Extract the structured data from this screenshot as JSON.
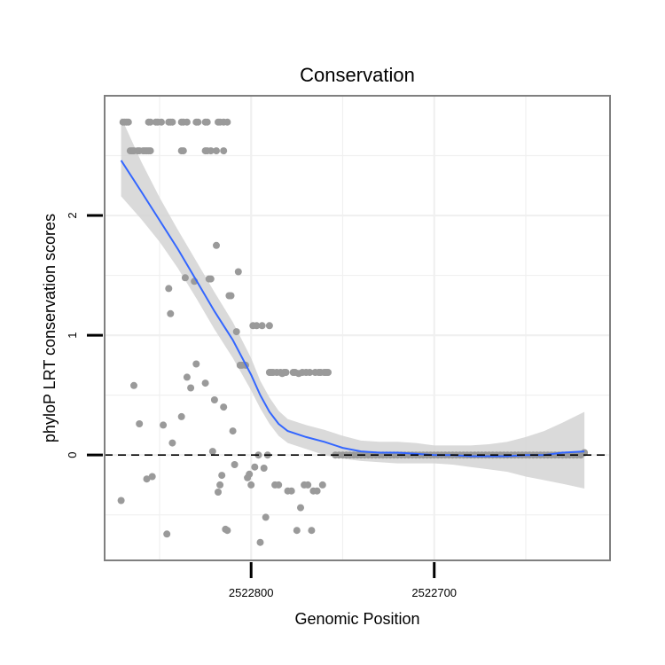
{
  "chart_data": {
    "type": "scatter",
    "title": "Conservation",
    "xlabel": "Genomic Position",
    "ylabel": "phyloP LRT conservation scores",
    "x_reversed": true,
    "xlim": [
      2522880,
      2522604
    ],
    "ylim": [
      -0.88,
      3.0
    ],
    "x_ticks": [
      2522800,
      2522700
    ],
    "x_tick_labels": [
      "2522800",
      "2522700"
    ],
    "y_ticks": [
      0,
      1,
      2
    ],
    "y_tick_labels": [
      "0",
      "1",
      "2"
    ],
    "grid": true,
    "reference_line": {
      "y": 0,
      "style": "dashed"
    },
    "colors": {
      "points": "#9a9a9a",
      "smooth_line": "#3366ff",
      "confidence_band": "#d3d3d3",
      "panel_border": "#7f7f7f",
      "grid": "#f0f0f0"
    },
    "series": [
      {
        "name": "scores",
        "points": [
          [
            2522870,
            2.78
          ],
          [
            2522869,
            2.78
          ],
          [
            2522868,
            2.78
          ],
          [
            2522867,
            2.78
          ],
          [
            2522856,
            2.78
          ],
          [
            2522855,
            2.78
          ],
          [
            2522852,
            2.78
          ],
          [
            2522851,
            2.78
          ],
          [
            2522849,
            2.78
          ],
          [
            2522845,
            2.78
          ],
          [
            2522844,
            2.78
          ],
          [
            2522843,
            2.78
          ],
          [
            2522838,
            2.78
          ],
          [
            2522837,
            2.78
          ],
          [
            2522835,
            2.78
          ],
          [
            2522830,
            2.78
          ],
          [
            2522829,
            2.78
          ],
          [
            2522825,
            2.78
          ],
          [
            2522824,
            2.78
          ],
          [
            2522818,
            2.78
          ],
          [
            2522817,
            2.78
          ],
          [
            2522815,
            2.78
          ],
          [
            2522813,
            2.78
          ],
          [
            2522866,
            2.54
          ],
          [
            2522865,
            2.54
          ],
          [
            2522864,
            2.54
          ],
          [
            2522862,
            2.54
          ],
          [
            2522861,
            2.54
          ],
          [
            2522859,
            2.54
          ],
          [
            2522858,
            2.54
          ],
          [
            2522857,
            2.54
          ],
          [
            2522856,
            2.54
          ],
          [
            2522855,
            2.54
          ],
          [
            2522838,
            2.54
          ],
          [
            2522837,
            2.54
          ],
          [
            2522825,
            2.54
          ],
          [
            2522824,
            2.54
          ],
          [
            2522822,
            2.54
          ],
          [
            2522819,
            2.54
          ],
          [
            2522815,
            2.54
          ],
          [
            2522871,
            -0.38
          ],
          [
            2522864,
            0.58
          ],
          [
            2522861,
            0.26
          ],
          [
            2522857,
            -0.2
          ],
          [
            2522854,
            -0.18
          ],
          [
            2522848,
            0.25
          ],
          [
            2522846,
            -0.66
          ],
          [
            2522845,
            1.39
          ],
          [
            2522844,
            1.18
          ],
          [
            2522843,
            0.1
          ],
          [
            2522838,
            0.32
          ],
          [
            2522836,
            1.48
          ],
          [
            2522835,
            0.65
          ],
          [
            2522833,
            0.56
          ],
          [
            2522831,
            1.45
          ],
          [
            2522830,
            0.76
          ],
          [
            2522825,
            0.6
          ],
          [
            2522823,
            1.47
          ],
          [
            2522822,
            1.47
          ],
          [
            2522821,
            0.03
          ],
          [
            2522820,
            0.46
          ],
          [
            2522819,
            1.75
          ],
          [
            2522818,
            -0.31
          ],
          [
            2522817,
            -0.25
          ],
          [
            2522816,
            -0.17
          ],
          [
            2522815,
            0.4
          ],
          [
            2522814,
            -0.62
          ],
          [
            2522813,
            -0.63
          ],
          [
            2522812,
            1.33
          ],
          [
            2522811,
            1.33
          ],
          [
            2522810,
            0.2
          ],
          [
            2522809,
            -0.08
          ],
          [
            2522808,
            1.03
          ],
          [
            2522807,
            1.53
          ],
          [
            2522806,
            0.75
          ],
          [
            2522805,
            0.75
          ],
          [
            2522803,
            0.75
          ],
          [
            2522802,
            -0.19
          ],
          [
            2522801,
            -0.16
          ],
          [
            2522800,
            -0.25
          ],
          [
            2522799,
            1.08
          ],
          [
            2522798,
            -0.1
          ],
          [
            2522797,
            1.08
          ],
          [
            2522796,
            0.0
          ],
          [
            2522795,
            -0.73
          ],
          [
            2522794,
            1.08
          ],
          [
            2522793,
            -0.11
          ],
          [
            2522792,
            -0.52
          ],
          [
            2522791,
            0.0
          ],
          [
            2522790,
            1.08
          ],
          [
            2522790,
            0.69
          ],
          [
            2522789,
            0.69
          ],
          [
            2522788,
            0.69
          ],
          [
            2522787,
            -0.25
          ],
          [
            2522786,
            0.69
          ],
          [
            2522785,
            -0.25
          ],
          [
            2522784,
            0.69
          ],
          [
            2522783,
            0.68
          ],
          [
            2522782,
            0.69
          ],
          [
            2522781,
            0.69
          ],
          [
            2522780,
            -0.3
          ],
          [
            2522778,
            -0.3
          ],
          [
            2522777,
            0.69
          ],
          [
            2522776,
            0.69
          ],
          [
            2522775,
            -0.63
          ],
          [
            2522774,
            0.68
          ],
          [
            2522773,
            -0.44
          ],
          [
            2522772,
            0.69
          ],
          [
            2522771,
            -0.25
          ],
          [
            2522770,
            0.69
          ],
          [
            2522769,
            -0.25
          ],
          [
            2522768,
            0.69
          ],
          [
            2522767,
            -0.63
          ],
          [
            2522766,
            -0.3
          ],
          [
            2522765,
            0.69
          ],
          [
            2522764,
            -0.3
          ],
          [
            2522763,
            0.69
          ],
          [
            2522762,
            0.69
          ],
          [
            2522761,
            -0.25
          ],
          [
            2522760,
            0.69
          ],
          [
            2522759,
            0.69
          ],
          [
            2522758,
            0.69
          ],
          [
            2522754,
            0.0
          ],
          [
            2522752,
            0.0
          ],
          [
            2522750,
            0.0
          ],
          [
            2522748,
            0.0
          ],
          [
            2522746,
            0.0
          ],
          [
            2522744,
            0.0
          ],
          [
            2522742,
            0.0
          ],
          [
            2522740,
            0.0
          ],
          [
            2522738,
            0.0
          ],
          [
            2522736,
            0.0
          ],
          [
            2522734,
            0.0
          ],
          [
            2522732,
            0.0
          ],
          [
            2522730,
            0.0
          ],
          [
            2522728,
            0.0
          ],
          [
            2522726,
            0.0
          ],
          [
            2522724,
            0.0
          ],
          [
            2522722,
            0.0
          ],
          [
            2522720,
            0.0
          ],
          [
            2522718,
            0.0
          ],
          [
            2522716,
            0.0
          ],
          [
            2522714,
            0.0
          ],
          [
            2522712,
            0.0
          ],
          [
            2522710,
            0.0
          ],
          [
            2522708,
            0.0
          ],
          [
            2522706,
            0.0
          ],
          [
            2522704,
            0.0
          ],
          [
            2522702,
            0.0
          ],
          [
            2522700,
            0.0
          ],
          [
            2522698,
            0.0
          ],
          [
            2522696,
            0.0
          ],
          [
            2522694,
            0.0
          ],
          [
            2522692,
            0.0
          ],
          [
            2522690,
            0.0
          ],
          [
            2522688,
            0.0
          ],
          [
            2522686,
            0.0
          ],
          [
            2522684,
            0.0
          ],
          [
            2522682,
            0.0
          ],
          [
            2522680,
            0.0
          ],
          [
            2522678,
            0.0
          ],
          [
            2522676,
            0.0
          ],
          [
            2522674,
            0.0
          ],
          [
            2522672,
            0.0
          ],
          [
            2522670,
            0.0
          ],
          [
            2522668,
            0.0
          ],
          [
            2522666,
            0.0
          ],
          [
            2522664,
            0.0
          ],
          [
            2522662,
            0.0
          ],
          [
            2522660,
            0.0
          ],
          [
            2522658,
            0.0
          ],
          [
            2522656,
            0.0
          ],
          [
            2522654,
            0.0
          ],
          [
            2522652,
            0.0
          ],
          [
            2522650,
            0.0
          ],
          [
            2522648,
            0.0
          ],
          [
            2522646,
            0.0
          ],
          [
            2522644,
            0.0
          ],
          [
            2522642,
            0.0
          ],
          [
            2522640,
            0.0
          ],
          [
            2522638,
            0.0
          ],
          [
            2522636,
            0.0
          ],
          [
            2522634,
            0.0
          ],
          [
            2522632,
            0.0
          ],
          [
            2522630,
            0.0
          ],
          [
            2522628,
            0.0
          ],
          [
            2522626,
            0.0
          ],
          [
            2522624,
            0.0
          ],
          [
            2522622,
            0.0
          ],
          [
            2522620,
            0.0
          ],
          [
            2522618,
            0.02
          ]
        ]
      }
    ],
    "smooth": {
      "name": "loess",
      "x": [
        2522871,
        2522860,
        2522850,
        2522840,
        2522830,
        2522820,
        2522810,
        2522800,
        2522795,
        2522790,
        2522785,
        2522780,
        2522770,
        2522760,
        2522750,
        2522740,
        2522730,
        2522720,
        2522710,
        2522700,
        2522690,
        2522680,
        2522670,
        2522660,
        2522650,
        2522640,
        2522630,
        2522618
      ],
      "y": [
        2.46,
        2.2,
        1.96,
        1.72,
        1.46,
        1.2,
        0.96,
        0.67,
        0.5,
        0.36,
        0.26,
        0.2,
        0.15,
        0.11,
        0.06,
        0.03,
        0.02,
        0.02,
        0.01,
        0.0,
        0.0,
        -0.01,
        -0.01,
        -0.01,
        0.0,
        0.0,
        0.02,
        0.03
      ],
      "lower": [
        2.16,
        1.97,
        1.78,
        1.56,
        1.31,
        1.05,
        0.81,
        0.54,
        0.39,
        0.26,
        0.16,
        0.1,
        0.05,
        0.0,
        -0.03,
        -0.05,
        -0.06,
        -0.07,
        -0.07,
        -0.07,
        -0.08,
        -0.1,
        -0.12,
        -0.14,
        -0.18,
        -0.21,
        -0.24,
        -0.28
      ],
      "upper": [
        2.82,
        2.45,
        2.15,
        1.88,
        1.62,
        1.36,
        1.11,
        0.81,
        0.62,
        0.48,
        0.37,
        0.3,
        0.25,
        0.21,
        0.16,
        0.12,
        0.11,
        0.11,
        0.1,
        0.08,
        0.08,
        0.08,
        0.09,
        0.11,
        0.15,
        0.2,
        0.27,
        0.36
      ]
    }
  }
}
